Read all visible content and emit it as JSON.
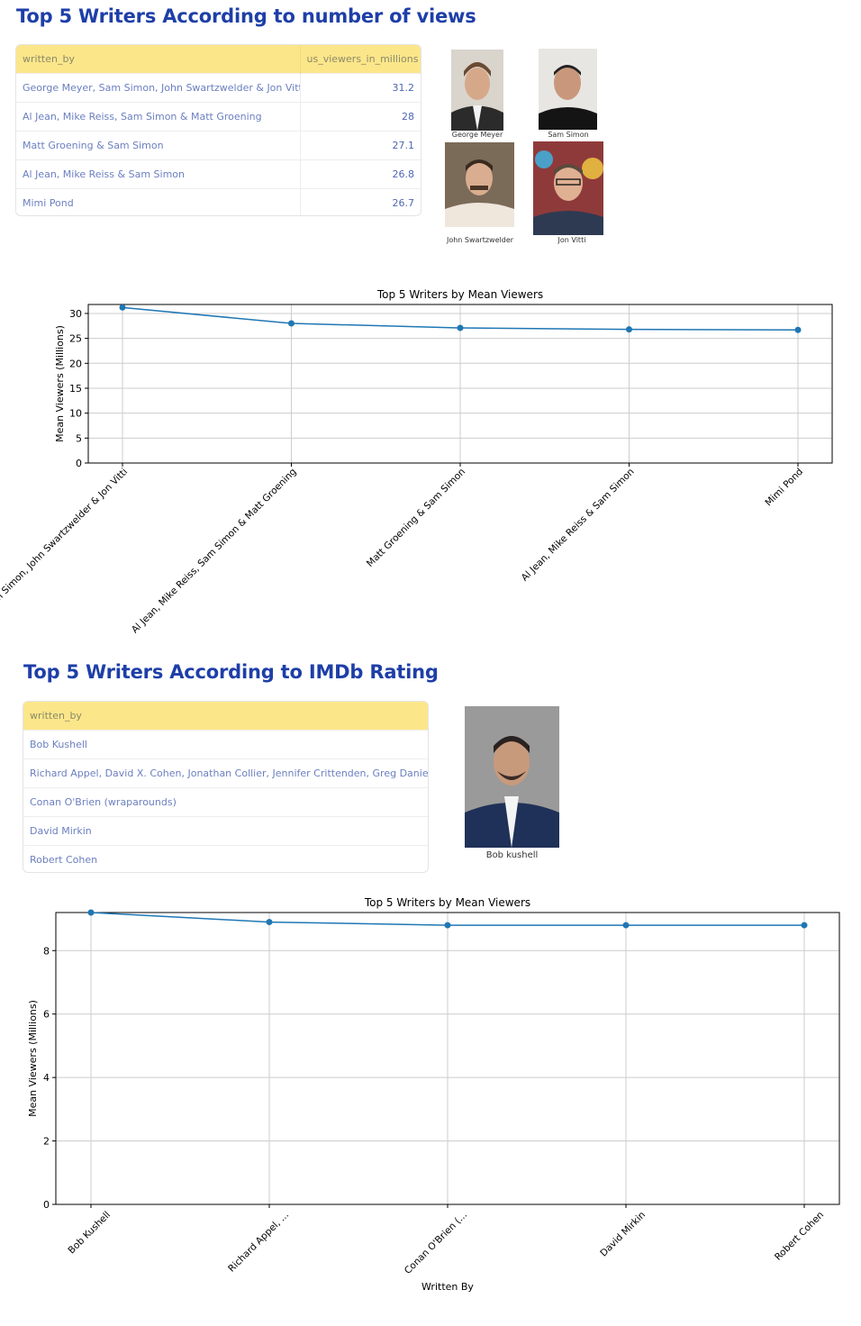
{
  "section1": {
    "title": "Top 5 Writers According to number of views",
    "table": {
      "headers": [
        "written_by",
        "us_viewers_in_millions"
      ],
      "rows": [
        [
          "George Meyer, Sam Simon, John Swartzwelder & Jon Vitti",
          "31.2"
        ],
        [
          "Al Jean, Mike Reiss, Sam Simon & Matt Groening",
          "28"
        ],
        [
          "Matt Groening & Sam Simon",
          "27.1"
        ],
        [
          "Al Jean, Mike Reiss & Sam Simon",
          "26.8"
        ],
        [
          "Mimi Pond",
          "26.7"
        ]
      ]
    },
    "photos": [
      {
        "caption": "George Meyer"
      },
      {
        "caption": "Sam Simon"
      },
      {
        "caption": "John Swartzwelder"
      },
      {
        "caption": "Jon Vitti"
      }
    ]
  },
  "section2": {
    "title": "Top 5 Writers According to IMDb Rating",
    "table": {
      "headers": [
        "written_by"
      ],
      "rows": [
        [
          "Bob Kushell"
        ],
        [
          "Richard Appel, David X. Cohen, Jonathan Collier, Jennifer Crittenden, Greg Daniels, B"
        ],
        [
          "Conan O'Brien (wraparounds)"
        ],
        [
          "David Mirkin"
        ],
        [
          "Robert Cohen"
        ]
      ]
    },
    "photos": [
      {
        "caption": "Bob kushell"
      }
    ]
  },
  "chart_data": [
    {
      "type": "line",
      "title": "Top 5 Writers by Mean Viewers",
      "xlabel": "",
      "ylabel": "Mean Viewers (Millions)",
      "categories": [
        "George Meyer, Sam Simon, John Swartzwelder & Jon Vitti",
        "Al Jean, Mike Reiss, Sam Simon & Matt Groening",
        "Matt Groening & Sam Simon",
        "Al Jean, Mike Reiss & Sam Simon",
        "Mimi Pond"
      ],
      "values": [
        31.2,
        28,
        27.1,
        26.8,
        26.7
      ],
      "ylim": [
        0,
        31.8
      ],
      "yticks": [
        0,
        5,
        10,
        15,
        20,
        25,
        30
      ],
      "grid": true,
      "color": "#1f77b4"
    },
    {
      "type": "line",
      "title": "Top 5 Writers by Mean Viewers",
      "xlabel": "Written By",
      "ylabel": "Mean Viewers (Millions)",
      "categories": [
        "Bob Kushell",
        "Richard Appel, ...",
        "Conan O'Brien (...",
        "David Mirkin",
        "Robert Cohen"
      ],
      "values": [
        9.2,
        8.9,
        8.8,
        8.8,
        8.8
      ],
      "ylim": [
        0,
        9.2
      ],
      "yticks": [
        0,
        2,
        4,
        6,
        8
      ],
      "grid": true,
      "color": "#1f77b4"
    }
  ]
}
